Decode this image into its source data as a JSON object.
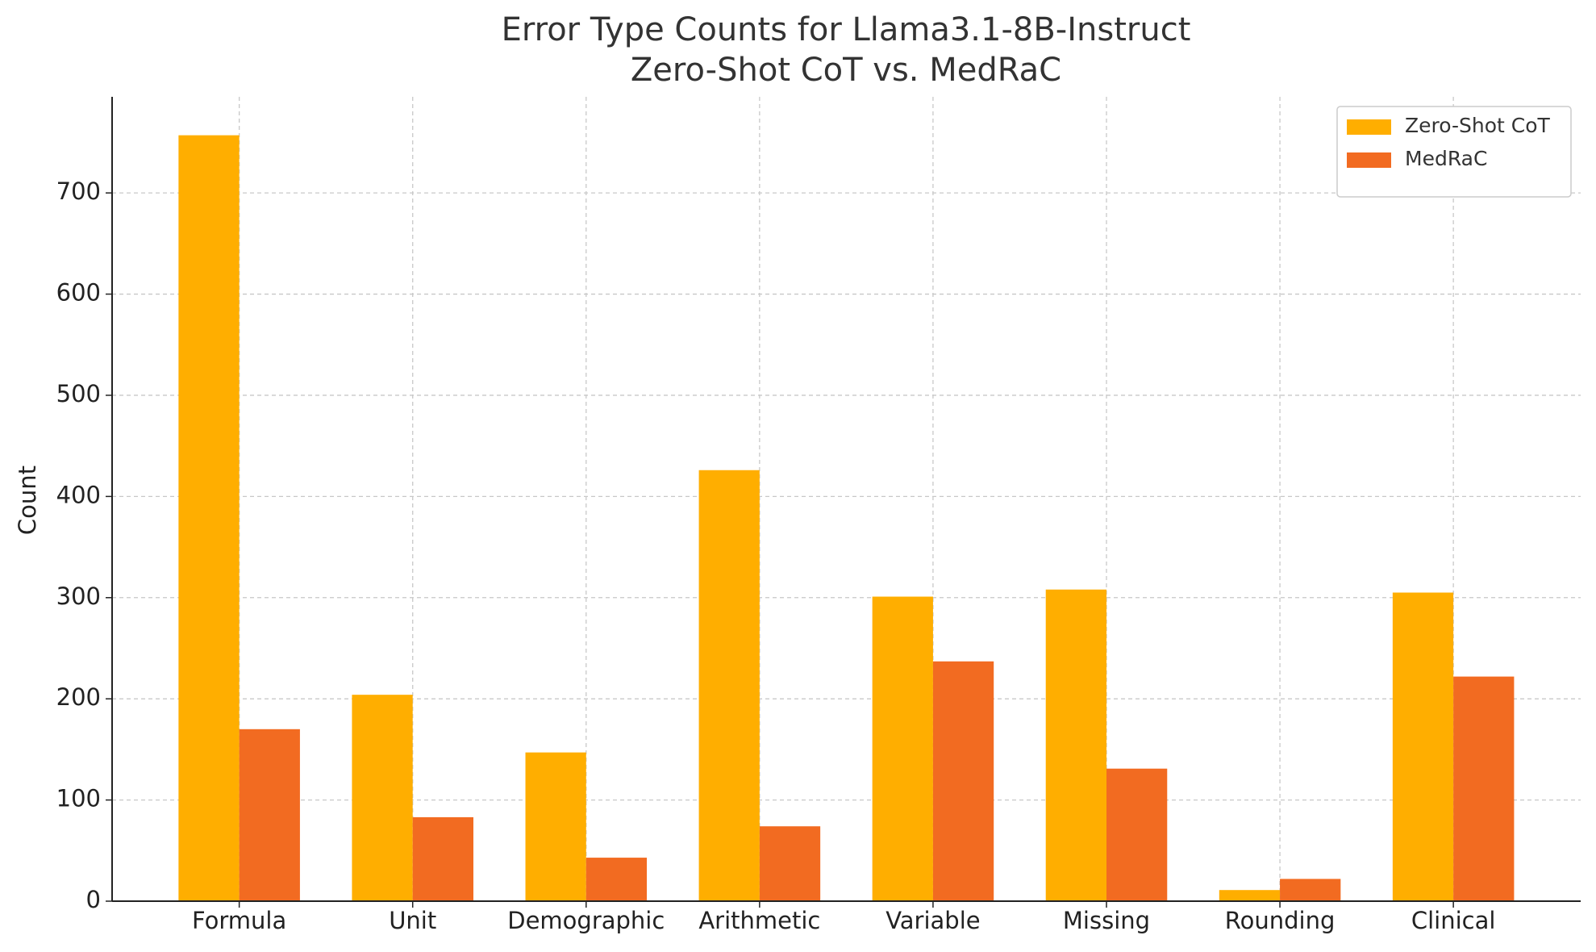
{
  "chart_data": {
    "type": "bar",
    "title": [
      "Error Type Counts for Llama3.1-8B-Instruct",
      "Zero-Shot CoT vs. MedRaC"
    ],
    "ylabel": "Count",
    "categories": [
      "Formula",
      "Unit",
      "Demographic",
      "Arithmetic",
      "Variable",
      "Missing",
      "Rounding",
      "Clinical"
    ],
    "series": [
      {
        "name": "Zero-Shot CoT",
        "color": "#ffae00",
        "values": [
          757,
          204,
          147,
          426,
          301,
          308,
          11,
          305
        ]
      },
      {
        "name": "MedRaC",
        "color": "#f26b21",
        "values": [
          170,
          83,
          43,
          74,
          237,
          131,
          22,
          222
        ]
      }
    ],
    "ylim": [
      0,
      795
    ],
    "yticks": [
      0,
      100,
      200,
      300,
      400,
      500,
      600,
      700
    ],
    "grid": true,
    "legend": "upper right"
  }
}
